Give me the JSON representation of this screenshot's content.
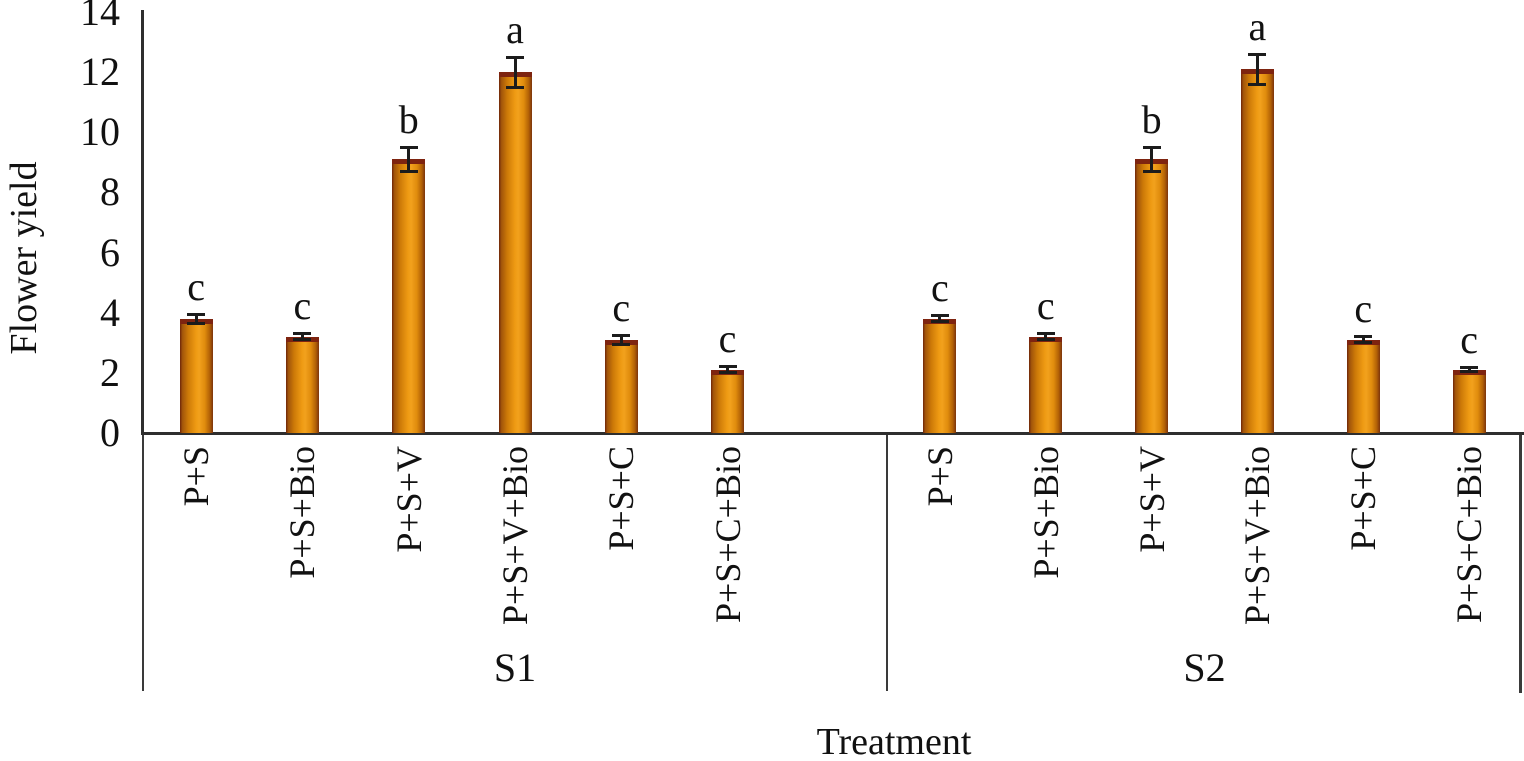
{
  "chart_data": {
    "type": "bar",
    "title": "",
    "ylabel": "Flower yield",
    "xlabel": "Treatment",
    "ylim": [
      0,
      14
    ],
    "yticks": [
      0,
      2,
      4,
      6,
      8,
      10,
      12,
      14
    ],
    "grid": false,
    "legend_position": "none",
    "bar_color": "#E8890C",
    "bar_edge_color": "#7B2810",
    "error_bar_color": "#1C1C1C",
    "categories": [
      "P+S",
      "P+S+Bio",
      "P+S+V",
      "P+S+V+Bio",
      "P+S+C",
      "P+S+C+Bio"
    ],
    "groups": [
      {
        "name": "S1",
        "values": [
          3.8,
          3.2,
          9.1,
          12.0,
          3.1,
          2.1
        ],
        "errors": [
          0.2,
          0.15,
          0.45,
          0.55,
          0.2,
          0.15
        ],
        "letters": [
          "c",
          "c",
          "b",
          "a",
          "c",
          "c"
        ]
      },
      {
        "name": "S2",
        "values": [
          3.8,
          3.2,
          9.1,
          12.1,
          3.1,
          2.1
        ],
        "errors": [
          0.15,
          0.15,
          0.45,
          0.55,
          0.15,
          0.12
        ],
        "letters": [
          "c",
          "c",
          "b",
          "a",
          "c",
          "c"
        ]
      }
    ]
  }
}
